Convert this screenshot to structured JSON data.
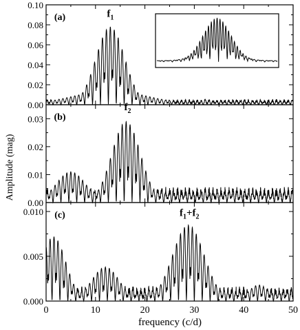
{
  "figure": {
    "ylabel": "Amplitude (mag)",
    "xlabel": "frequency (c/d)",
    "x_ticks": [
      "0",
      "10",
      "20",
      "30",
      "40",
      "50"
    ]
  },
  "chart_data": [
    {
      "type": "line",
      "panel_label": "(a)",
      "annotation": {
        "main": "f",
        "sub": "1",
        "x": 13.0,
        "y": 0.088
      },
      "xlim": [
        0,
        50
      ],
      "ylim": [
        0,
        0.1
      ],
      "y_ticks": [
        "0.00",
        "0.02",
        "0.04",
        "0.06",
        "0.08",
        "0.10"
      ],
      "peak": {
        "center": 13.0,
        "height": 0.078,
        "width": 2.9
      },
      "spacing": 0.8,
      "envelope_floor": 0.004,
      "inset": {
        "center": "mid",
        "height_fraction": 0.85,
        "inner_fraction": 0.55
      },
      "grid": false
    },
    {
      "type": "line",
      "panel_label": "(b)",
      "annotation": {
        "main": "f",
        "sub": "2",
        "x": 16.5,
        "y": 0.033
      },
      "xlim": [
        0,
        50
      ],
      "ylim": [
        0,
        0.035
      ],
      "y_ticks": [
        "0.00",
        "0.01",
        "0.02",
        "0.03"
      ],
      "peak": {
        "center": 16.2,
        "height": 0.029,
        "width": 2.9
      },
      "secondary": [
        {
          "center": 5.0,
          "height": 0.011,
          "width": 3.0
        }
      ],
      "spacing": 0.8,
      "envelope_floor": 0.004,
      "grid": false
    },
    {
      "type": "line",
      "panel_label": "(c)",
      "annotation": {
        "main": "f",
        "sub": "1",
        "plus": "+",
        "main2": "f",
        "sub2": "2",
        "x": 29.0,
        "y": 0.0095
      },
      "xlim": [
        0,
        50
      ],
      "ylim": [
        0,
        0.011
      ],
      "y_ticks": [
        "0.000",
        "0.005",
        "0.010"
      ],
      "peak": {
        "center": 28.8,
        "height": 0.0085,
        "width": 3.2
      },
      "secondary": [
        {
          "center": 1.5,
          "height": 0.0072,
          "width": 2.5
        },
        {
          "center": 12.0,
          "height": 0.0038,
          "width": 2.8
        },
        {
          "center": 43.0,
          "height": 0.0018,
          "width": 2.0
        }
      ],
      "spacing": 0.8,
      "envelope_floor": 0.0012,
      "grid": false
    }
  ]
}
